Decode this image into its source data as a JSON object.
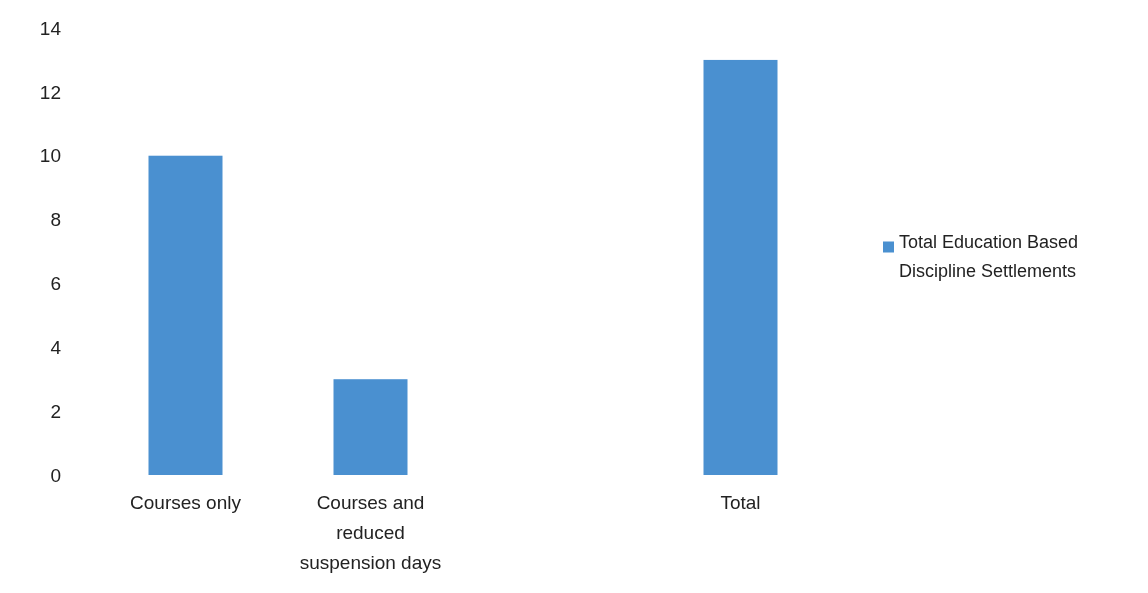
{
  "chart_data": {
    "type": "bar",
    "categories": [
      "Courses only",
      "Courses and reduced suspension days",
      null,
      "Total"
    ],
    "series": [
      {
        "name": "Total Education Based Discipline Settlements",
        "color": "#4a90d0",
        "values": [
          10,
          3,
          null,
          13
        ]
      }
    ],
    "ylim": [
      0,
      14
    ],
    "yticks": [
      0,
      2,
      4,
      6,
      8,
      10,
      12,
      14
    ],
    "grid": false,
    "legend": "right"
  }
}
